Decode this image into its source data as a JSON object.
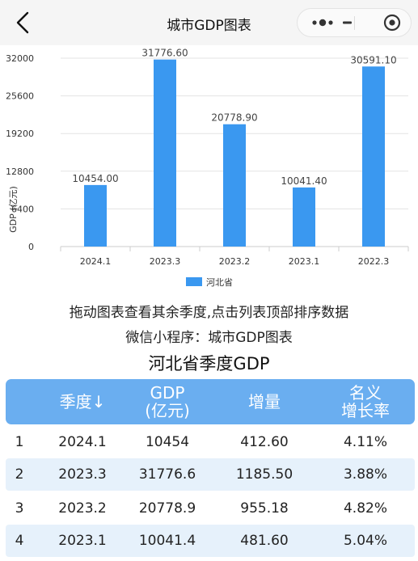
{
  "nav": {
    "title": "城市GDP图表"
  },
  "chart_data": {
    "type": "bar",
    "categories": [
      "2024.1",
      "2023.3",
      "2023.2",
      "2023.1",
      "2022.3"
    ],
    "series": [
      {
        "name": "河北省",
        "values": [
          10454.0,
          31776.6,
          20778.9,
          10041.4,
          30591.1
        ]
      }
    ],
    "value_labels": [
      "10454.00",
      "31776.60",
      "20778.90",
      "10041.40",
      "30591.10"
    ],
    "ylabel": "GDP (亿元)",
    "ylim": [
      0,
      32000
    ],
    "yticks": [
      0,
      6400,
      12800,
      19200,
      25600,
      32000
    ],
    "grid": true,
    "legend_position": "bottom",
    "colors": {
      "bar": "#3a98f0",
      "grid": "#e3e3e3",
      "axis": "#cccccc"
    }
  },
  "hints": {
    "line1": "拖动图表查看其余季度,点击列表顶部排序数据",
    "line2": "微信小程序：城市GDP图表"
  },
  "table": {
    "title": "河北省季度GDP",
    "headers": {
      "season": "季度↓",
      "gdp_line1": "GDP",
      "gdp_line2": "(亿元)",
      "increase": "增量",
      "rate_line1": "名义",
      "rate_line2": "增长率"
    },
    "rows": [
      {
        "rank": "1",
        "season": "2024.1",
        "gdp": "10454",
        "increase": "412.60",
        "rate": "4.11%"
      },
      {
        "rank": "2",
        "season": "2023.3",
        "gdp": "31776.6",
        "increase": "1185.50",
        "rate": "3.88%"
      },
      {
        "rank": "3",
        "season": "2023.2",
        "gdp": "20778.9",
        "increase": "955.18",
        "rate": "4.82%"
      },
      {
        "rank": "4",
        "season": "2023.1",
        "gdp": "10041.4",
        "increase": "481.60",
        "rate": "5.04%"
      }
    ],
    "colors": {
      "header_bg": "#6aaef0",
      "alt_row_bg": "#e6f1fb"
    }
  }
}
